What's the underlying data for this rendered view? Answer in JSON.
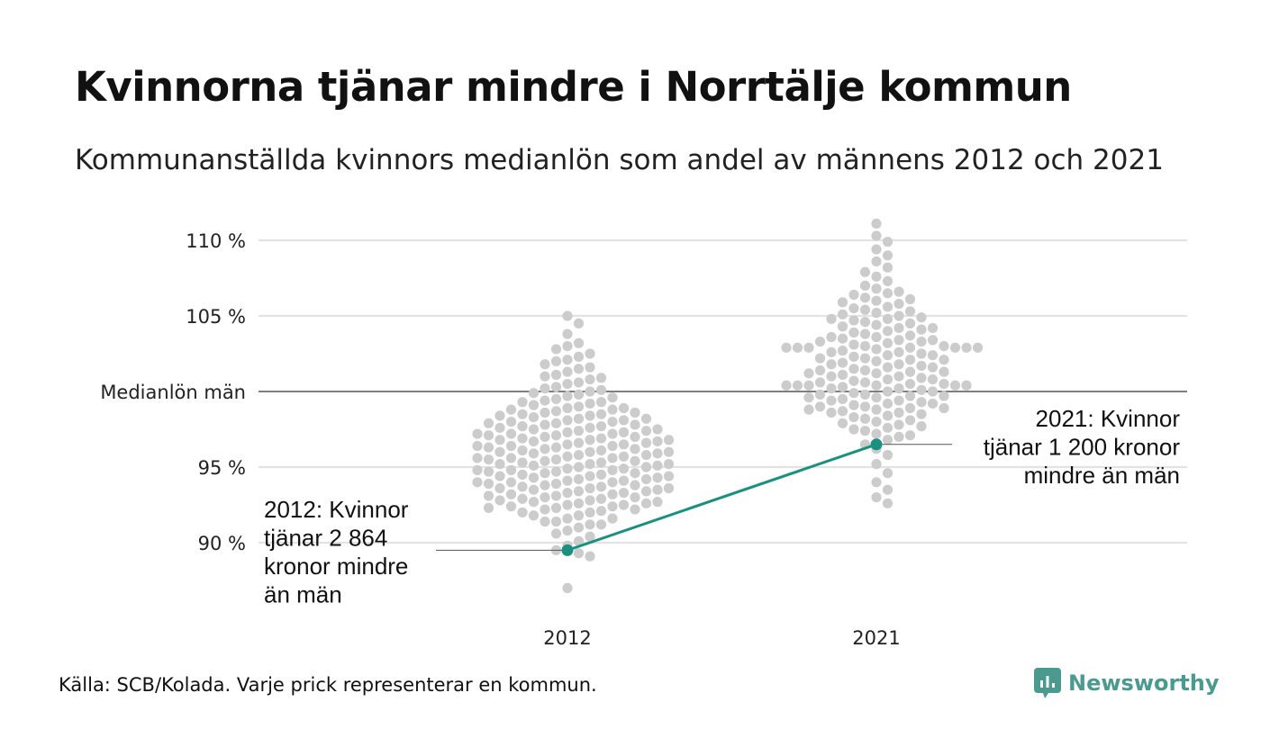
{
  "title": "Kvinnorna tjänar mindre i Norrtälje kommun",
  "subtitle": "Kommunanställda kvinnors medianlön som andel av männens 2012 och 2021",
  "footer": "Källa: SCB/Kolada. Varje prick representerar en kommun.",
  "brand": {
    "name": "Newsworthy",
    "icon": "newsworthy-logo-icon",
    "color": "#4a9a8f"
  },
  "chart_data": {
    "type": "scatter",
    "subtype": "beeswarm",
    "categories": [
      "2012",
      "2021"
    ],
    "y_ticks": [
      {
        "value": 90,
        "label": "90 %"
      },
      {
        "value": 95,
        "label": "95 %"
      },
      {
        "value": 100,
        "label": "Medianlön män"
      },
      {
        "value": 105,
        "label": "105 %"
      },
      {
        "value": 110,
        "label": "110 %"
      }
    ],
    "ylim": [
      86.5,
      111.6
    ],
    "grid": true,
    "reference_line": {
      "value": 100,
      "label": "Medianlön män"
    },
    "colors": {
      "dots": "#cccccc",
      "highlight": "#1a9080",
      "grid": "#e3e3e3",
      "reference": "#333333"
    },
    "series": [
      {
        "category": "2012",
        "values": [
          105.0,
          104.5,
          103.8,
          103.2,
          103.0,
          102.8,
          102.5,
          102.3,
          102.1,
          102.0,
          101.8,
          101.6,
          101.5,
          101.3,
          101.1,
          101.0,
          100.9,
          100.8,
          100.6,
          100.5,
          100.3,
          100.2,
          100.1,
          100.0,
          99.9,
          99.8,
          99.6,
          99.5,
          99.4,
          99.3,
          99.2,
          99.1,
          99.0,
          98.9,
          98.8,
          98.7,
          98.6,
          98.5,
          98.4,
          98.3,
          98.2,
          98.1,
          98.0,
          97.9,
          97.8,
          97.7,
          97.6,
          97.5,
          97.4,
          97.3,
          97.2,
          97.1,
          97.0,
          96.9,
          96.8,
          96.7,
          96.6,
          96.5,
          96.4,
          96.3,
          96.2,
          96.1,
          96.0,
          95.9,
          95.8,
          95.7,
          95.6,
          95.5,
          95.4,
          95.3,
          95.2,
          95.1,
          95.0,
          94.9,
          94.8,
          94.7,
          94.6,
          94.5,
          94.4,
          94.3,
          94.2,
          94.1,
          94.0,
          93.9,
          93.8,
          93.7,
          93.6,
          93.5,
          93.4,
          93.3,
          93.2,
          93.1,
          93.0,
          92.9,
          92.8,
          92.7,
          92.6,
          92.5,
          92.4,
          92.3,
          92.2,
          92.1,
          92.0,
          91.8,
          91.6,
          91.4,
          91.2,
          91.0,
          90.8,
          90.6,
          90.4,
          90.1,
          89.8,
          89.5,
          89.3,
          89.1,
          87.0,
          98.8,
          98.6,
          98.4,
          98.2,
          98.0,
          97.8,
          97.6,
          97.4,
          97.2,
          97.0,
          96.8,
          96.6,
          96.4,
          96.2,
          96.0,
          95.8,
          95.6,
          95.4,
          95.2,
          95.0,
          94.8,
          94.6,
          94.4,
          94.2,
          94.0,
          93.8,
          93.6,
          93.4,
          93.2,
          93.0,
          92.8,
          92.6,
          92.4,
          92.2,
          92.0,
          91.8,
          91.6,
          91.4,
          91.2,
          97.9,
          97.5,
          97.1,
          96.7,
          96.3,
          95.9,
          95.5,
          95.1,
          94.7,
          94.3,
          93.9,
          93.5,
          93.1,
          92.7,
          92.3,
          99.7,
          99.3,
          98.9,
          98.5,
          98.1,
          97.7,
          97.3,
          96.9,
          96.5,
          96.1,
          95.7,
          95.3,
          94.9,
          94.5,
          94.1,
          93.7,
          93.3,
          92.9,
          92.5,
          96.8,
          96.0,
          95.2,
          94.4,
          93.6,
          97.2,
          96.4,
          95.6,
          94.8,
          94.0
        ],
        "highlight": {
          "value": 89.5,
          "label": "2012: Kvinnor\ntjänar 2 864\nkronor mindre\nän män"
        }
      },
      {
        "category": "2021",
        "values": [
          111.1,
          110.3,
          109.9,
          109.4,
          109.0,
          108.6,
          108.2,
          107.9,
          107.6,
          107.3,
          107.0,
          106.8,
          106.6,
          106.4,
          106.2,
          106.0,
          105.8,
          105.6,
          105.4,
          105.2,
          105.0,
          104.8,
          104.6,
          104.4,
          104.2,
          104.0,
          103.8,
          103.6,
          103.4,
          103.2,
          103.0,
          102.8,
          102.6,
          102.4,
          102.2,
          102.0,
          101.8,
          101.6,
          101.4,
          101.2,
          101.0,
          100.8,
          100.6,
          100.4,
          100.2,
          100.0,
          99.8,
          99.6,
          99.4,
          99.2,
          99.0,
          98.8,
          98.6,
          98.4,
          98.2,
          98.0,
          97.8,
          97.6,
          97.4,
          97.2,
          97.0,
          96.8,
          96.5,
          96.2,
          95.8,
          95.2,
          94.6,
          94.0,
          93.5,
          93.0,
          92.6,
          106.1,
          105.5,
          104.9,
          104.3,
          103.7,
          103.1,
          102.5,
          101.9,
          101.3,
          100.7,
          100.1,
          99.5,
          98.9,
          98.3,
          97.7,
          97.1,
          105.3,
          104.7,
          104.1,
          103.5,
          102.9,
          102.3,
          101.7,
          101.1,
          100.5,
          99.9,
          99.3,
          98.7,
          98.1,
          97.5,
          104.5,
          103.9,
          103.3,
          102.7,
          102.1,
          101.5,
          100.9,
          100.3,
          99.7,
          99.1,
          98.5,
          97.9,
          103.0,
          102.4,
          101.8,
          101.2,
          100.6,
          100.0,
          99.4,
          98.8,
          102.9,
          102.1,
          101.3,
          100.5,
          99.7,
          98.9,
          102.9,
          100.4,
          99.6,
          102.9,
          100.4,
          102.9,
          100.4,
          102.9,
          100.4,
          106.5,
          105.9,
          105.1,
          104.2,
          103.4,
          102.6,
          101.6,
          100.8,
          99.8,
          98.6,
          104.8,
          103.6,
          102.2,
          101.4,
          100.2,
          99.2,
          102.9,
          100.4,
          103.3,
          101.0,
          99.0
        ],
        "highlight": {
          "value": 96.5,
          "label": "2021: Kvinnor\ntjänar 1 200 kronor\nmindre än män"
        }
      }
    ]
  }
}
